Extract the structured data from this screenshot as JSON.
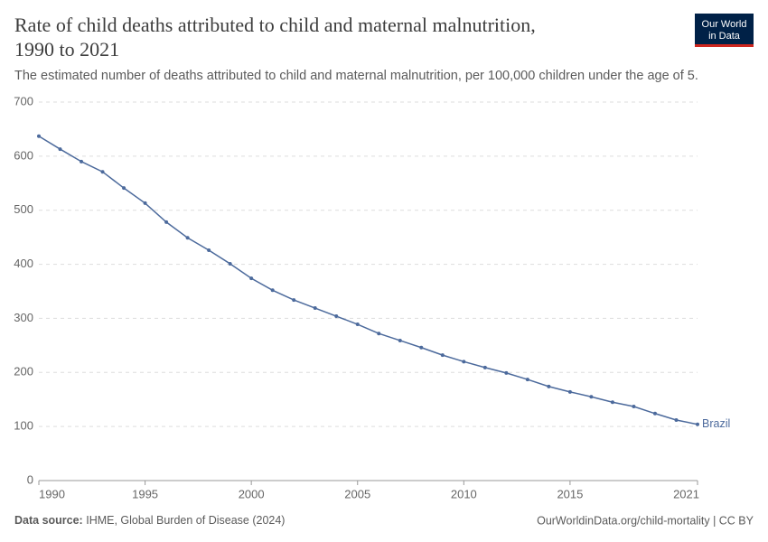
{
  "chart_data": {
    "type": "line",
    "title": [
      "Rate of child deaths attributed to child and maternal malnutrition,",
      "1990 to 2021"
    ],
    "subtitle": "The estimated number of deaths attributed to child and maternal malnutrition, per 100,000 children under the age of 5.",
    "logo": [
      "Our World",
      "in Data"
    ],
    "source_label": "Data source:",
    "source": "IHME, Global Burden of Disease (2024)",
    "footer_right": "OurWorldinData.org/child-mortality | CC BY",
    "x": [
      1990,
      1991,
      1992,
      1993,
      1994,
      1995,
      1996,
      1997,
      1998,
      1999,
      2000,
      2001,
      2002,
      2003,
      2004,
      2005,
      2006,
      2007,
      2008,
      2009,
      2010,
      2011,
      2012,
      2013,
      2014,
      2015,
      2016,
      2017,
      2018,
      2019,
      2020,
      2021
    ],
    "series": [
      {
        "name": "Brazil",
        "color": "#4c6a9c",
        "values": [
          637,
          613,
          590,
          571,
          541,
          513,
          478,
          449,
          426,
          401,
          374,
          352,
          334,
          319,
          304,
          289,
          272,
          259,
          246,
          232,
          220,
          209,
          199,
          187,
          174,
          164,
          155,
          145,
          137,
          124,
          112,
          104
        ]
      }
    ],
    "xlim": [
      1990,
      2021
    ],
    "xticks": [
      1990,
      1995,
      2000,
      2005,
      2010,
      2015,
      2021
    ],
    "ylim": [
      0,
      700
    ],
    "yticks": [
      0,
      100,
      200,
      300,
      400,
      500,
      600,
      700
    ],
    "grid": true
  }
}
